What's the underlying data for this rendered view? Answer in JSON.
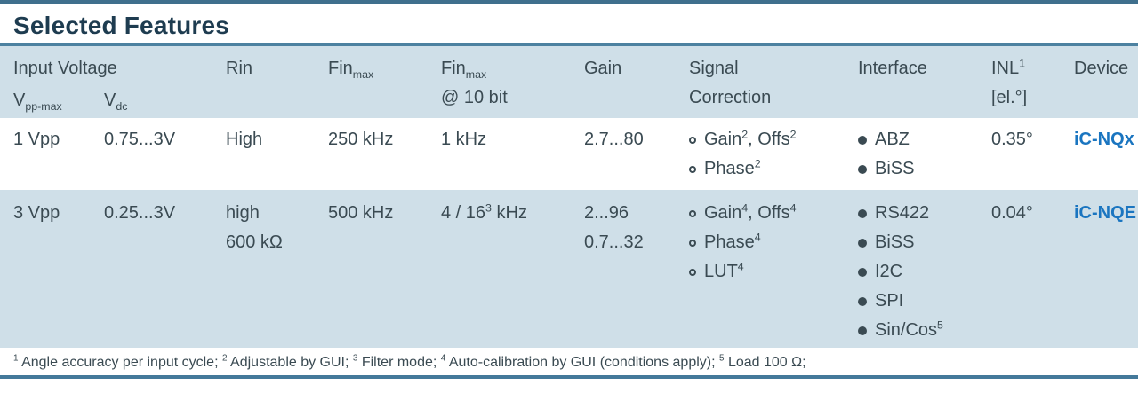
{
  "title": "Selected Features",
  "colors": {
    "rule_blue": "#4c81a0",
    "band_blue": "#cfdfe8",
    "device_link_blue": "#1a75c0",
    "title_dark": "#1e3c50",
    "body_text": "#3a4a52"
  },
  "icons": {
    "signal_correction_bullet": "open-circle-bullet-icon",
    "interface_bullet": "filled-circle-bullet-icon"
  },
  "header": {
    "input_voltage": "Input Voltage",
    "vpp_max": "V~pp-max~",
    "vdc": "V~dc~",
    "rin": "Rin",
    "fin_max": "Fin~max~",
    "fin_max_10bit": "Fin~max~\n@ 10 bit",
    "gain": "Gain",
    "signal_correction": "Signal\nCorrection",
    "interface": "Interface",
    "inl": "INL^1^\n[el.°]",
    "device": "Device"
  },
  "rows": [
    {
      "vpp_max": "1 Vpp",
      "vdc": "0.75...3V",
      "rin": "High",
      "fin_max": "250 kHz",
      "fin_max_10bit": "1 kHz",
      "gain": [
        "2.7...80"
      ],
      "signal_correction": [
        "Gain^2^, Offs^2^",
        "Phase^2^"
      ],
      "interface": [
        "ABZ",
        "BiSS"
      ],
      "inl": "0.35°",
      "device": "iC-NQx"
    },
    {
      "vpp_max": "3 Vpp",
      "vdc": "0.25...3V",
      "rin": "high\n600 kΩ",
      "fin_max": "500 kHz",
      "fin_max_10bit": "4 / 16^3^ kHz",
      "gain": [
        "2...96",
        "0.7...32"
      ],
      "signal_correction": [
        "Gain^4^, Offs^4^",
        "Phase^4^",
        "LUT^4^"
      ],
      "interface": [
        "RS422",
        "BiSS",
        "I2C",
        "SPI",
        "Sin/Cos^5^"
      ],
      "inl": "0.04°",
      "device": "iC-NQE"
    }
  ],
  "footnote": "^1^ Angle accuracy per input cycle; ^2^ Adjustable by GUI; ^3^ Filter mode; ^4^ Auto-calibration by GUI (conditions apply); ^5^ Load 100 Ω;"
}
